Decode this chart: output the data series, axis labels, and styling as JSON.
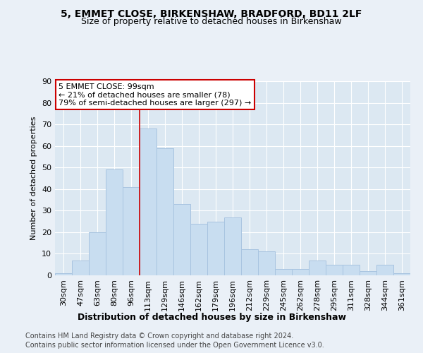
{
  "title1": "5, EMMET CLOSE, BIRKENSHAW, BRADFORD, BD11 2LF",
  "title2": "Size of property relative to detached houses in Birkenshaw",
  "xlabel": "Distribution of detached houses by size in Birkenshaw",
  "ylabel": "Number of detached properties",
  "categories": [
    "30sqm",
    "47sqm",
    "63sqm",
    "80sqm",
    "96sqm",
    "113sqm",
    "129sqm",
    "146sqm",
    "162sqm",
    "179sqm",
    "196sqm",
    "212sqm",
    "229sqm",
    "245sqm",
    "262sqm",
    "278sqm",
    "295sqm",
    "311sqm",
    "328sqm",
    "344sqm",
    "361sqm"
  ],
  "values": [
    1,
    7,
    20,
    49,
    41,
    68,
    59,
    33,
    24,
    25,
    27,
    12,
    11,
    3,
    3,
    7,
    5,
    5,
    2,
    5,
    1
  ],
  "bar_color": "#c8ddf0",
  "bar_edgecolor": "#a8c4e0",
  "vline_color": "#cc0000",
  "vline_pos": 4.5,
  "annotation_title": "5 EMMET CLOSE: 99sqm",
  "annotation_line2": "← 21% of detached houses are smaller (78)",
  "annotation_line3": "79% of semi-detached houses are larger (297) →",
  "ylim": [
    0,
    90
  ],
  "yticks": [
    0,
    10,
    20,
    30,
    40,
    50,
    60,
    70,
    80,
    90
  ],
  "footer1": "Contains HM Land Registry data © Crown copyright and database right 2024.",
  "footer2": "Contains public sector information licensed under the Open Government Licence v3.0.",
  "fig_bg_color": "#eaf0f7",
  "plot_bg_color": "#dce8f2",
  "grid_color": "#ffffff",
  "title1_fontsize": 10,
  "title2_fontsize": 9,
  "xlabel_fontsize": 9,
  "ylabel_fontsize": 8,
  "tick_fontsize": 8,
  "annotation_fontsize": 8,
  "footer_fontsize": 7
}
